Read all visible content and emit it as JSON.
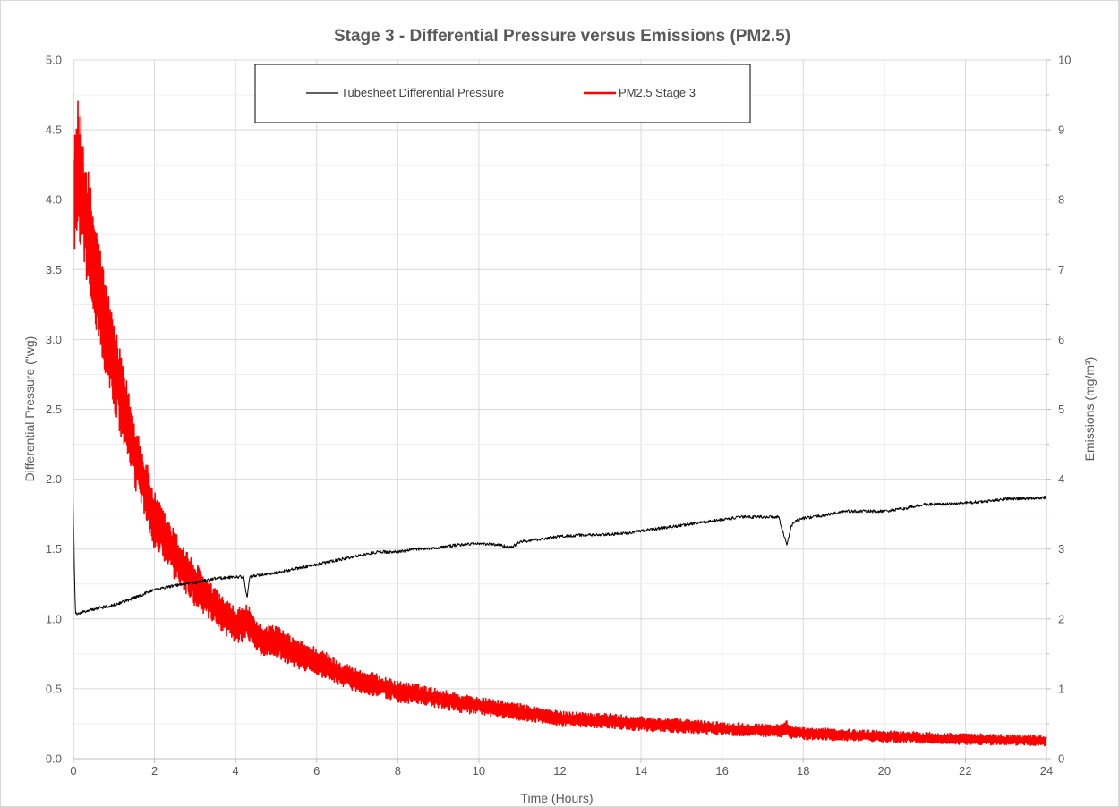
{
  "chart_data": {
    "type": "line",
    "title": "Stage 3 - Differential Pressure versus Emissions  (PM2.5)",
    "xlabel": "Time (Hours)",
    "ylabel_left": "Differential Pressure (\"wg)",
    "ylabel_right": "Emissions (mg/m³)",
    "xlim": [
      0,
      24
    ],
    "ylim_left": [
      0,
      5
    ],
    "ylim_right": [
      0,
      10
    ],
    "x_ticks": [
      "0",
      "2",
      "4",
      "6",
      "8",
      "10",
      "12",
      "14",
      "16",
      "18",
      "20",
      "22",
      "24"
    ],
    "y_left_ticks": [
      "0.0",
      "0.5",
      "1.0",
      "1.5",
      "2.0",
      "2.5",
      "3.0",
      "3.5",
      "4.0",
      "4.5",
      "5.0"
    ],
    "y_right_ticks": [
      "0",
      "1",
      "2",
      "3",
      "4",
      "5",
      "6",
      "7",
      "8",
      "9",
      "10"
    ],
    "grid": true,
    "legend_position": "top-center",
    "series": [
      {
        "name": "Tubesheet Differential Pressure",
        "axis": "left",
        "color": "#000000",
        "x": [
          0,
          0.02,
          0.05,
          0.1,
          0.5,
          1,
          1.5,
          2,
          2.5,
          3,
          3.5,
          4,
          4.2,
          4.28,
          4.35,
          4.5,
          5,
          5.5,
          6,
          6.5,
          7,
          7.5,
          8,
          8.5,
          9,
          9.5,
          10,
          10.5,
          10.8,
          11,
          11.5,
          12,
          12.5,
          13,
          13.5,
          14,
          14.5,
          15,
          15.5,
          16,
          16.5,
          17,
          17.4,
          17.5,
          17.6,
          17.7,
          17.8,
          18,
          18.5,
          19,
          19.5,
          20,
          20.5,
          21,
          21.5,
          22,
          22.5,
          23,
          23.5,
          24
        ],
        "y": [
          1.86,
          1.4,
          1.04,
          1.04,
          1.07,
          1.1,
          1.15,
          1.21,
          1.24,
          1.26,
          1.29,
          1.3,
          1.3,
          1.15,
          1.3,
          1.31,
          1.33,
          1.36,
          1.39,
          1.42,
          1.45,
          1.48,
          1.48,
          1.5,
          1.51,
          1.53,
          1.54,
          1.53,
          1.51,
          1.55,
          1.57,
          1.59,
          1.6,
          1.6,
          1.61,
          1.63,
          1.65,
          1.67,
          1.69,
          1.71,
          1.73,
          1.73,
          1.73,
          1.62,
          1.53,
          1.66,
          1.7,
          1.72,
          1.74,
          1.77,
          1.77,
          1.77,
          1.79,
          1.82,
          1.82,
          1.83,
          1.84,
          1.86,
          1.86,
          1.87
        ]
      },
      {
        "name": "PM2.5 Stage 3",
        "axis": "right",
        "color": "#ff0000",
        "x": [
          0,
          0.1,
          0.2,
          0.3,
          0.5,
          0.75,
          1,
          1.25,
          1.5,
          1.75,
          2,
          2.5,
          3,
          3.5,
          4,
          4.3,
          4.5,
          5,
          5.5,
          6,
          6.5,
          7,
          7.5,
          8,
          8.5,
          9,
          9.5,
          10,
          11,
          12,
          13,
          14,
          15,
          16,
          17,
          17.5,
          17.6,
          17.7,
          18,
          19,
          20,
          21,
          22,
          23,
          24
        ],
        "y": [
          7.8,
          8.5,
          8.2,
          7.8,
          7.1,
          6.3,
          5.6,
          5.0,
          4.4,
          3.9,
          3.4,
          2.9,
          2.5,
          2.15,
          1.9,
          1.95,
          1.72,
          1.68,
          1.5,
          1.4,
          1.25,
          1.12,
          1.05,
          0.96,
          0.92,
          0.86,
          0.8,
          0.75,
          0.67,
          0.57,
          0.55,
          0.5,
          0.47,
          0.43,
          0.41,
          0.4,
          0.45,
          0.37,
          0.36,
          0.34,
          0.32,
          0.3,
          0.28,
          0.27,
          0.26
        ]
      }
    ]
  }
}
